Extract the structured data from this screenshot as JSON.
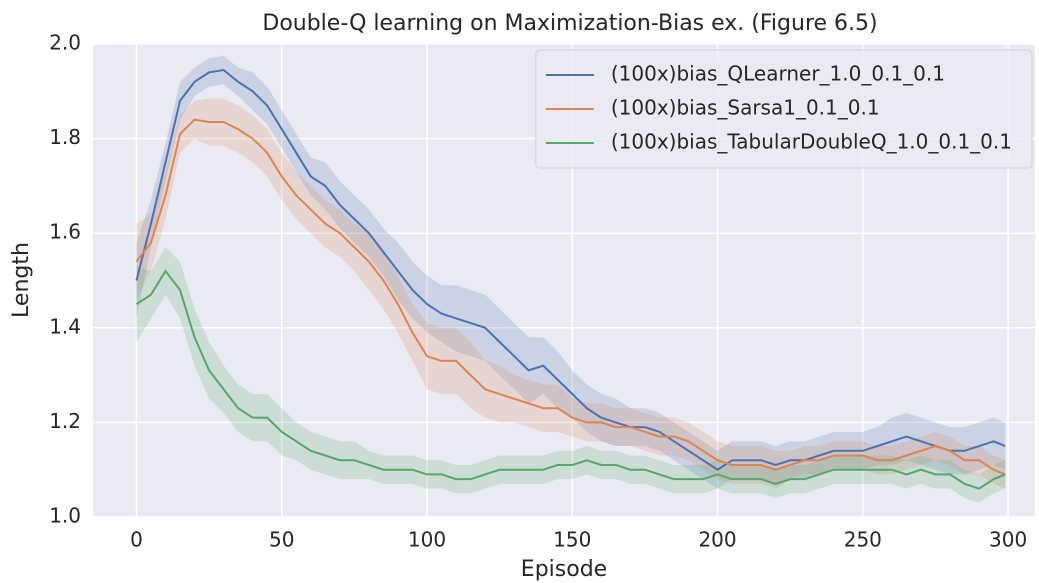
{
  "chart_data": {
    "type": "line",
    "title": "Double-Q learning on Maximization-Bias ex. (Figure 6.5)",
    "xlabel": "Episode",
    "ylabel": "Length",
    "x": [
      0,
      5,
      10,
      15,
      20,
      25,
      30,
      35,
      40,
      45,
      50,
      55,
      60,
      65,
      70,
      75,
      80,
      85,
      90,
      95,
      100,
      105,
      110,
      115,
      120,
      125,
      130,
      135,
      140,
      145,
      150,
      155,
      160,
      165,
      170,
      175,
      180,
      185,
      190,
      195,
      200,
      205,
      210,
      215,
      220,
      225,
      230,
      235,
      240,
      245,
      250,
      255,
      260,
      265,
      270,
      275,
      280,
      285,
      290,
      295,
      299
    ],
    "xlim": [
      -14.95,
      309.25
    ],
    "xticks": [
      0,
      50,
      100,
      150,
      200,
      250,
      300
    ],
    "ylim": [
      1.0,
      2.0
    ],
    "yticks": [
      {
        "value": 1.0,
        "label": "1.0"
      },
      1.2,
      1.4,
      1.6,
      1.8,
      {
        "value": 2.0,
        "label": "2.0"
      }
    ],
    "grid": true,
    "legend": "upper right",
    "series": [
      {
        "name": "(100x)bias_QLearner_1.0_0.1_0.1",
        "color": "#4c72b0",
        "values": [
          1.5,
          1.62,
          1.75,
          1.88,
          1.92,
          1.94,
          1.945,
          1.92,
          1.9,
          1.87,
          1.82,
          1.77,
          1.72,
          1.7,
          1.66,
          1.63,
          1.6,
          1.56,
          1.52,
          1.48,
          1.45,
          1.43,
          1.42,
          1.41,
          1.4,
          1.37,
          1.34,
          1.31,
          1.32,
          1.29,
          1.26,
          1.23,
          1.21,
          1.2,
          1.19,
          1.19,
          1.18,
          1.16,
          1.14,
          1.12,
          1.1,
          1.12,
          1.12,
          1.12,
          1.11,
          1.12,
          1.12,
          1.13,
          1.14,
          1.14,
          1.14,
          1.15,
          1.16,
          1.17,
          1.16,
          1.15,
          1.14,
          1.14,
          1.15,
          1.16,
          1.15
        ],
        "ci": [
          0.08,
          0.05,
          0.04,
          0.04,
          0.03,
          0.03,
          0.03,
          0.03,
          0.04,
          0.04,
          0.04,
          0.04,
          0.04,
          0.05,
          0.05,
          0.05,
          0.05,
          0.05,
          0.06,
          0.06,
          0.06,
          0.06,
          0.07,
          0.07,
          0.07,
          0.07,
          0.07,
          0.07,
          0.06,
          0.06,
          0.05,
          0.05,
          0.05,
          0.05,
          0.04,
          0.04,
          0.04,
          0.04,
          0.04,
          0.04,
          0.04,
          0.04,
          0.04,
          0.04,
          0.04,
          0.04,
          0.04,
          0.04,
          0.04,
          0.04,
          0.04,
          0.04,
          0.05,
          0.05,
          0.05,
          0.05,
          0.05,
          0.05,
          0.05,
          0.05,
          0.05
        ]
      },
      {
        "name": "(100x)bias_Sarsa1_0.1_0.1",
        "color": "#dd8452",
        "values": [
          1.54,
          1.58,
          1.68,
          1.81,
          1.84,
          1.835,
          1.835,
          1.82,
          1.8,
          1.77,
          1.72,
          1.68,
          1.65,
          1.62,
          1.6,
          1.57,
          1.54,
          1.5,
          1.45,
          1.39,
          1.34,
          1.33,
          1.33,
          1.3,
          1.27,
          1.26,
          1.25,
          1.24,
          1.23,
          1.23,
          1.21,
          1.2,
          1.2,
          1.19,
          1.19,
          1.18,
          1.17,
          1.17,
          1.16,
          1.14,
          1.12,
          1.11,
          1.11,
          1.11,
          1.1,
          1.11,
          1.12,
          1.12,
          1.13,
          1.13,
          1.13,
          1.12,
          1.12,
          1.13,
          1.14,
          1.15,
          1.14,
          1.12,
          1.12,
          1.1,
          1.09
        ],
        "ci": [
          0.08,
          0.06,
          0.05,
          0.04,
          0.04,
          0.05,
          0.05,
          0.05,
          0.05,
          0.05,
          0.05,
          0.05,
          0.05,
          0.05,
          0.05,
          0.05,
          0.06,
          0.06,
          0.06,
          0.06,
          0.07,
          0.07,
          0.07,
          0.07,
          0.06,
          0.06,
          0.05,
          0.05,
          0.05,
          0.05,
          0.04,
          0.04,
          0.04,
          0.04,
          0.04,
          0.04,
          0.04,
          0.04,
          0.04,
          0.04,
          0.04,
          0.04,
          0.04,
          0.04,
          0.04,
          0.03,
          0.03,
          0.03,
          0.03,
          0.03,
          0.03,
          0.03,
          0.03,
          0.03,
          0.03,
          0.03,
          0.03,
          0.03,
          0.03,
          0.03,
          0.03
        ]
      },
      {
        "name": "(100x)bias_TabularDoubleQ_1.0_0.1_0.1",
        "color": "#55a868",
        "values": [
          1.45,
          1.47,
          1.52,
          1.48,
          1.38,
          1.31,
          1.27,
          1.23,
          1.21,
          1.21,
          1.18,
          1.16,
          1.14,
          1.13,
          1.12,
          1.12,
          1.11,
          1.1,
          1.1,
          1.1,
          1.09,
          1.09,
          1.08,
          1.08,
          1.09,
          1.1,
          1.1,
          1.1,
          1.1,
          1.11,
          1.11,
          1.12,
          1.11,
          1.11,
          1.1,
          1.1,
          1.09,
          1.08,
          1.08,
          1.08,
          1.09,
          1.08,
          1.08,
          1.08,
          1.07,
          1.08,
          1.08,
          1.09,
          1.1,
          1.1,
          1.1,
          1.1,
          1.1,
          1.09,
          1.1,
          1.09,
          1.09,
          1.07,
          1.06,
          1.08,
          1.09
        ],
        "ci": [
          0.08,
          0.05,
          0.05,
          0.06,
          0.06,
          0.06,
          0.05,
          0.05,
          0.05,
          0.05,
          0.05,
          0.04,
          0.04,
          0.04,
          0.04,
          0.04,
          0.03,
          0.03,
          0.03,
          0.03,
          0.03,
          0.03,
          0.03,
          0.03,
          0.03,
          0.03,
          0.03,
          0.03,
          0.03,
          0.03,
          0.03,
          0.03,
          0.03,
          0.03,
          0.03,
          0.03,
          0.03,
          0.03,
          0.03,
          0.03,
          0.03,
          0.03,
          0.03,
          0.03,
          0.03,
          0.03,
          0.03,
          0.03,
          0.03,
          0.03,
          0.03,
          0.03,
          0.03,
          0.03,
          0.03,
          0.03,
          0.03,
          0.03,
          0.03,
          0.03,
          0.03
        ]
      }
    ]
  }
}
